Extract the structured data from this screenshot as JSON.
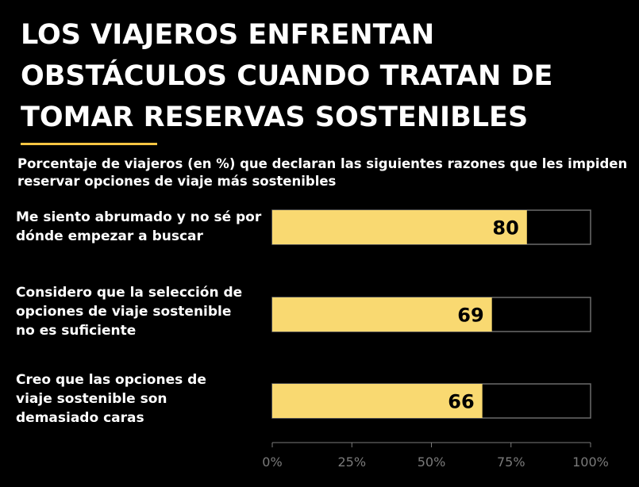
{
  "chart_data": {
    "type": "bar",
    "orientation": "horizontal",
    "title": "LOS VIAJEROS ENFRENTAN OBSTÁCULOS CUANDO TRATAN DE TOMAR  RESERVAS SOSTENIBLES",
    "subtitle": "Porcentaje de viajeros (en %) que declaran las siguientes razones que les impiden reservar opciones de viaje más sostenibles",
    "categories": [
      "Me siento abrumado y no sé por dónde empezar a buscar",
      "Considero que la selección de opciones de viaje sostenible no es suficiente",
      "Creo que las opciones de viaje sostenible son demasiado caras"
    ],
    "values": [
      80,
      69,
      66
    ],
    "data_labels": [
      "80",
      "69",
      "66"
    ],
    "xlim": [
      0,
      100
    ],
    "x_ticks": [
      "0%",
      "25%",
      "50%",
      "75%",
      "100%"
    ],
    "xlabel": "",
    "ylabel": "",
    "grid": false,
    "legend": "none"
  },
  "colors": {
    "bar_fill": "#f9d971",
    "bar_outline": "#6b6b6b",
    "background": "#000000",
    "text": "#ffffff",
    "data_label": "#000000",
    "axis": "#7a7a7a",
    "accent": "#f5c542"
  }
}
